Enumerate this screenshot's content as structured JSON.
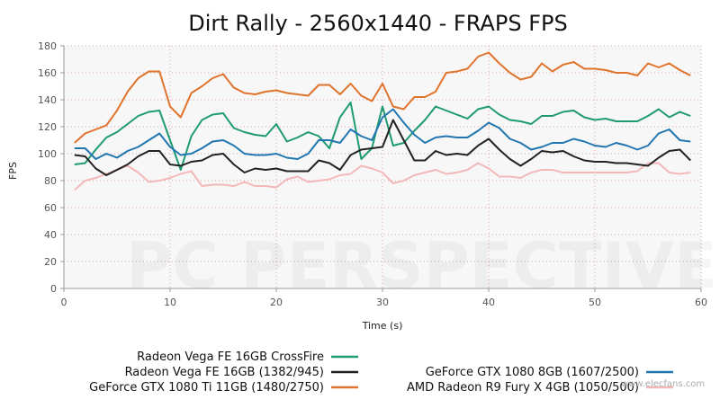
{
  "chart_data": {
    "type": "line",
    "title": "Dirt Rally - 2560x1440 - FRAPS FPS",
    "xlabel": "Time (s)",
    "ylabel": "FPS",
    "xlim": [
      0,
      60
    ],
    "ylim": [
      0,
      180
    ],
    "xticks": [
      0,
      10,
      20,
      30,
      40,
      50,
      60
    ],
    "yticks": [
      0,
      20,
      40,
      60,
      80,
      100,
      120,
      140,
      160,
      180
    ],
    "grid": true,
    "legend_position": "bottom",
    "x": [
      1,
      2,
      3,
      4,
      5,
      6,
      7,
      8,
      9,
      10,
      11,
      12,
      13,
      14,
      15,
      16,
      17,
      18,
      19,
      20,
      21,
      22,
      23,
      24,
      25,
      26,
      27,
      28,
      29,
      30,
      31,
      32,
      33,
      34,
      35,
      36,
      37,
      38,
      39,
      40,
      41,
      42,
      43,
      44,
      45,
      46,
      47,
      48,
      49,
      50,
      51,
      52,
      53,
      54,
      55,
      56,
      57,
      58,
      59
    ],
    "series": [
      {
        "name": "Radeon Vega FE 16GB CrossFire",
        "color": "#1f9a73",
        "values": [
          92,
          93,
          103,
          112,
          116,
          122,
          128,
          131,
          132,
          110,
          88,
          113,
          125,
          129,
          130,
          119,
          116,
          114,
          113,
          122,
          109,
          112,
          116,
          113,
          104,
          127,
          138,
          96,
          104,
          135,
          106,
          108,
          117,
          125,
          135,
          132,
          129,
          126,
          133,
          135,
          129,
          125,
          124,
          122,
          128,
          128,
          131,
          132,
          127,
          125,
          126,
          124,
          124,
          124,
          128,
          133,
          127,
          131,
          128
        ]
      },
      {
        "name": "Radeon Vega FE 16GB (1382/945)",
        "color": "#222222",
        "values": [
          99,
          98,
          89,
          84,
          88,
          92,
          98,
          102,
          102,
          92,
          91,
          94,
          95,
          99,
          100,
          92,
          86,
          89,
          88,
          89,
          87,
          87,
          87,
          95,
          93,
          88,
          99,
          103,
          104,
          105,
          125,
          110,
          95,
          95,
          102,
          99,
          100,
          99,
          106,
          111,
          103,
          96,
          91,
          96,
          102,
          101,
          102,
          98,
          95,
          94,
          94,
          93,
          93,
          92,
          91,
          97,
          102,
          103,
          95
        ]
      },
      {
        "name": "GeForce GTX 1080 Ti 11GB (1480/2750)",
        "color": "#e0732c",
        "values": [
          108,
          115,
          118,
          121,
          132,
          146,
          156,
          161,
          161,
          135,
          127,
          145,
          150,
          156,
          159,
          149,
          145,
          144,
          146,
          147,
          145,
          144,
          143,
          151,
          151,
          144,
          152,
          143,
          139,
          152,
          135,
          133,
          142,
          142,
          146,
          160,
          161,
          163,
          172,
          175,
          167,
          160,
          155,
          157,
          167,
          161,
          166,
          168,
          163,
          163,
          162,
          160,
          160,
          158,
          167,
          164,
          167,
          162,
          158
        ]
      },
      {
        "name": "GeForce GTX 1080 8GB (1607/2500)",
        "color": "#2176b0",
        "values": [
          104,
          104,
          96,
          100,
          97,
          102,
          105,
          110,
          115,
          105,
          99,
          100,
          104,
          109,
          110,
          106,
          100,
          99,
          99,
          100,
          97,
          96,
          100,
          110,
          110,
          108,
          118,
          113,
          110,
          127,
          133,
          123,
          114,
          108,
          112,
          113,
          112,
          112,
          117,
          123,
          119,
          111,
          108,
          103,
          105,
          108,
          108,
          111,
          109,
          106,
          105,
          108,
          106,
          103,
          106,
          115,
          118,
          110,
          109
        ]
      },
      {
        "name": "AMD Radeon R9 Fury X 4GB (1050/500)",
        "color": "#f4b8b8",
        "values": [
          73,
          80,
          82,
          85,
          88,
          91,
          86,
          79,
          80,
          82,
          85,
          87,
          76,
          77,
          77,
          76,
          79,
          76,
          76,
          75,
          81,
          83,
          79,
          80,
          81,
          84,
          85,
          91,
          89,
          86,
          78,
          80,
          84,
          86,
          88,
          85,
          86,
          88,
          93,
          89,
          83,
          83,
          82,
          86,
          88,
          88,
          86,
          86,
          86,
          86,
          86,
          86,
          86,
          87,
          93,
          93,
          86,
          85,
          86
        ]
      }
    ]
  },
  "watermark": {
    "text": "PC PERSPECTIVE",
    "site": "www.elecfans.com"
  }
}
